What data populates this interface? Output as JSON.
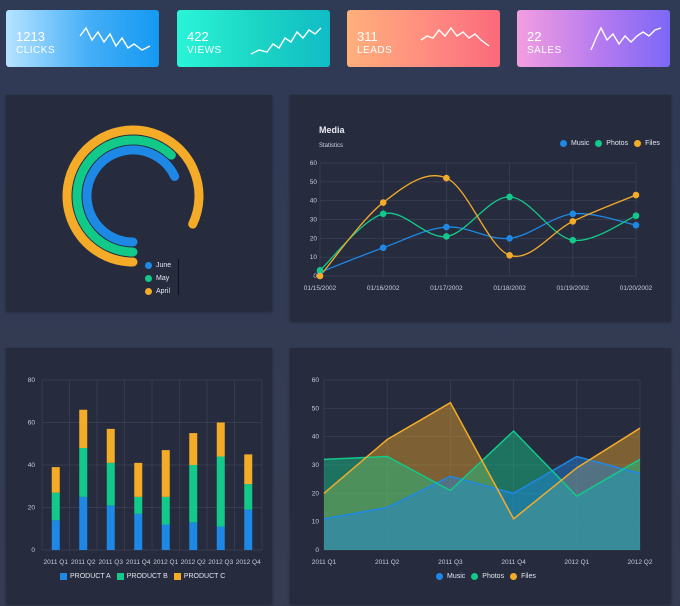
{
  "kpis": [
    {
      "value": "1213",
      "label": "CLICKS"
    },
    {
      "value": "422",
      "label": "VIEWS"
    },
    {
      "value": "311",
      "label": "LEADS"
    },
    {
      "value": "22",
      "label": "SALES"
    }
  ],
  "colors": {
    "blue": "#1e88e5",
    "green": "#13c98a",
    "yellow": "#f4ac28",
    "grid": "#3d4257",
    "tick": "#c9cdd8"
  },
  "chart_data": [
    {
      "type": "radial-bar",
      "series": [
        {
          "name": "June",
          "value": 68
        },
        {
          "name": "May",
          "value": 62
        },
        {
          "name": "April",
          "value": 82
        }
      ],
      "max": 100,
      "legend": "bottom-right"
    },
    {
      "type": "line",
      "title": "Media",
      "subtitle": "Statistics",
      "x": [
        "01/15/2002",
        "01/16/2002",
        "01/17/2002",
        "01/18/2002",
        "01/19/2002",
        "01/20/2002"
      ],
      "series": [
        {
          "name": "Music",
          "values": [
            2,
            15,
            26,
            20,
            33,
            27
          ]
        },
        {
          "name": "Photos",
          "values": [
            3,
            33,
            21,
            42,
            19,
            32
          ]
        },
        {
          "name": "Files",
          "values": [
            0,
            39,
            52,
            11,
            29,
            43
          ]
        }
      ],
      "ylim": [
        0,
        60
      ],
      "yticks": [
        0,
        10,
        20,
        30,
        40,
        50,
        60
      ],
      "legend": "top-right",
      "grid": true
    },
    {
      "type": "bar",
      "stacked": true,
      "categories": [
        "2011 Q1",
        "2011 Q2",
        "2011 Q3",
        "2011 Q4",
        "2012 Q1",
        "2012 Q2",
        "2012 Q3",
        "2012 Q4"
      ],
      "series": [
        {
          "name": "PRODUCT A",
          "values": [
            14,
            25,
            21,
            17,
            12,
            13,
            11,
            19
          ]
        },
        {
          "name": "PRODUCT B",
          "values": [
            13,
            23,
            20,
            8,
            13,
            27,
            33,
            12
          ]
        },
        {
          "name": "PRODUCT C",
          "values": [
            12,
            18,
            16,
            16,
            22,
            15,
            16,
            14
          ]
        }
      ],
      "ylim": [
        0,
        80
      ],
      "yticks": [
        0,
        20,
        40,
        60,
        80
      ],
      "legend": "bottom",
      "grid": true
    },
    {
      "type": "area",
      "x": [
        "2011 Q1",
        "2011 Q2",
        "2011 Q3",
        "2011 Q4",
        "2012 Q1",
        "2012 Q2"
      ],
      "series": [
        {
          "name": "Music",
          "values": [
            11,
            15,
            26,
            20,
            33,
            27
          ]
        },
        {
          "name": "Photos",
          "values": [
            32,
            33,
            21,
            42,
            19,
            32
          ]
        },
        {
          "name": "Files",
          "values": [
            20,
            39,
            52,
            11,
            29,
            43
          ]
        }
      ],
      "ylim": [
        0,
        60
      ],
      "yticks": [
        0,
        10,
        20,
        30,
        40,
        50,
        60
      ],
      "legend": "bottom",
      "grid": true
    }
  ]
}
